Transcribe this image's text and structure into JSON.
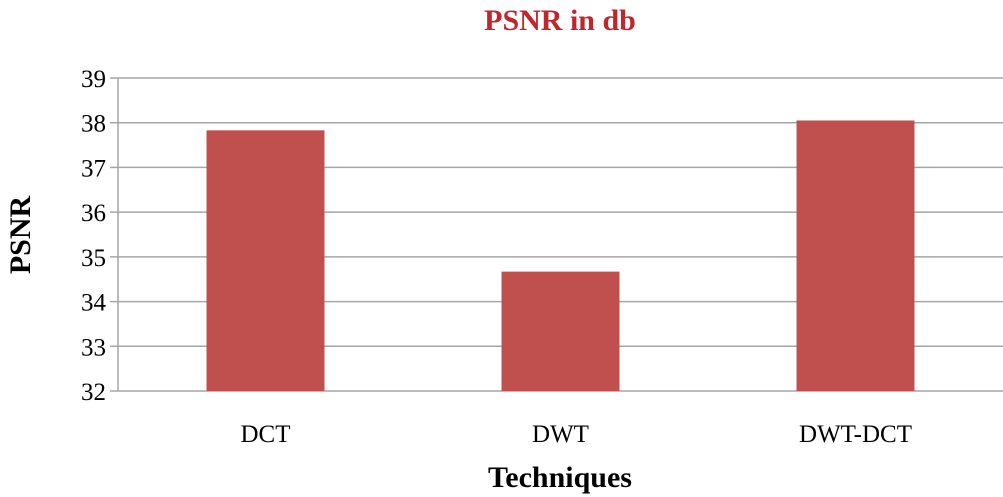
{
  "chart_data": {
    "type": "bar",
    "title": "PSNR in db",
    "xlabel": "Techniques",
    "ylabel": "PSNR",
    "categories": [
      "DCT",
      "DWT",
      "DWT-DCT"
    ],
    "series": [
      {
        "values": [
          37.83,
          34.67,
          38.05
        ],
        "color": "#c0504d"
      }
    ],
    "ylim": [
      32,
      39
    ],
    "yticks": [
      "32",
      "33",
      "34",
      "35",
      "36",
      "37",
      "38",
      "39"
    ],
    "grid": true,
    "legend": "none",
    "title_color": "#c0272d"
  }
}
